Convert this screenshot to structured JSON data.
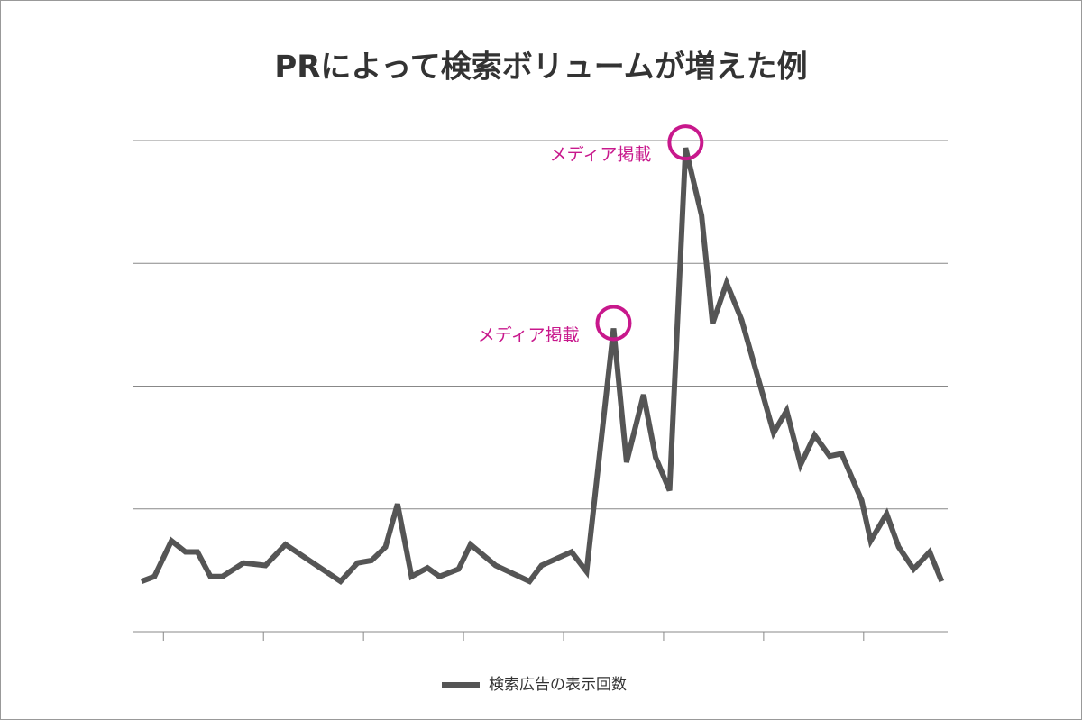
{
  "chart_data": {
    "type": "line",
    "title": "PRによって検索ボリュームが増えた例",
    "series": [
      {
        "name": "検索広告の表示回数",
        "color": "#555555",
        "x": [
          -0.22,
          -0.09,
          0.08,
          0.22,
          0.34,
          0.47,
          0.59,
          0.8,
          1.02,
          1.22,
          1.77,
          1.94,
          2.08,
          2.22,
          2.34,
          2.48,
          2.64,
          2.76,
          2.95,
          3.07,
          3.32,
          3.66,
          3.78,
          4.08,
          4.23,
          4.5,
          4.63,
          4.8,
          4.92,
          5.06,
          5.22,
          5.38,
          5.49,
          5.63,
          5.78,
          6.1,
          6.23,
          6.37,
          6.51,
          6.66,
          6.78,
          6.98,
          7.07,
          7.23,
          7.35,
          7.5,
          7.66,
          7.78
        ],
        "values": [
          0.41,
          0.45,
          0.74,
          0.65,
          0.65,
          0.45,
          0.45,
          0.56,
          0.54,
          0.71,
          0.41,
          0.56,
          0.58,
          0.69,
          1.04,
          0.45,
          0.52,
          0.45,
          0.51,
          0.71,
          0.54,
          0.41,
          0.54,
          0.65,
          0.49,
          2.47,
          1.38,
          1.93,
          1.42,
          1.15,
          3.94,
          3.39,
          2.51,
          2.84,
          2.54,
          1.62,
          1.8,
          1.36,
          1.6,
          1.43,
          1.45,
          1.07,
          0.74,
          0.96,
          0.69,
          0.51,
          0.65,
          0.41
        ]
      }
    ],
    "annotations": [
      {
        "text": "メディア掲載",
        "x": 4.5,
        "y": 2.47,
        "color": "#c8188c"
      },
      {
        "text": "メディア掲載",
        "x": 5.22,
        "y": 3.94,
        "color": "#c8188c"
      }
    ],
    "xlim": [
      -0.3,
      7.84
    ],
    "xticks": [
      0,
      1,
      2,
      3,
      4,
      5,
      6,
      7
    ],
    "ylim": [
      0,
      4
    ],
    "yticks": [
      0,
      1,
      2,
      3,
      4
    ],
    "grid": true
  }
}
